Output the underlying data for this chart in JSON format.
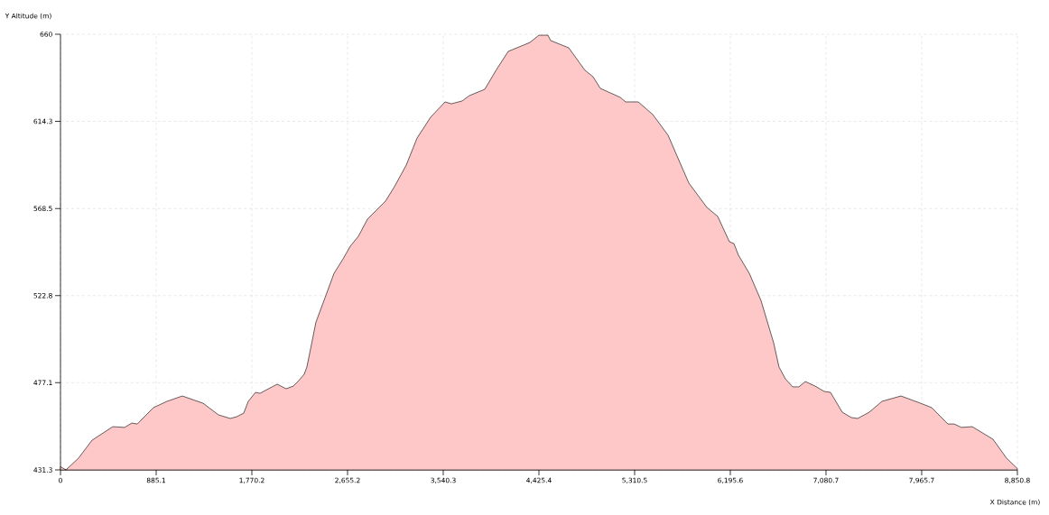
{
  "chart_data": {
    "type": "area",
    "xlabel": "X Distance (m)",
    "ylabel": "Y Altitude (m)",
    "color": "#ffc8c8",
    "grid": true,
    "xlim": [
      0,
      8850.8
    ],
    "ylim": [
      431.3,
      660
    ],
    "xticks": [
      0,
      885.1,
      {
        "value": 1770.2,
        "label": "1,770.2"
      },
      {
        "value": 2655.2,
        "label": "2,655.2"
      },
      {
        "value": 3540.3,
        "label": "3,540.3"
      },
      {
        "value": 4425.4,
        "label": "4,425.4"
      },
      {
        "value": 5310.5,
        "label": "5,310.5"
      },
      {
        "value": 6195.6,
        "label": "6,195.6"
      },
      {
        "value": 7080.7,
        "label": "7,080.7"
      },
      {
        "value": 7965.7,
        "label": "7,965.7"
      },
      {
        "value": 8850.8,
        "label": "8,850.8"
      }
    ],
    "yticks": [
      431.3,
      477.1,
      522.8,
      568.5,
      614.3,
      660
    ],
    "x": [
      0,
      50,
      167,
      292,
      484,
      593,
      660,
      710,
      860,
      985,
      1127,
      1319,
      1461,
      1570,
      1628,
      1695,
      1737,
      1804,
      1845,
      2004,
      2087,
      2154,
      2196,
      2254,
      2279,
      2363,
      2447,
      2530,
      2614,
      2680,
      2755,
      2839,
      3006,
      3089,
      3198,
      3298,
      3423,
      3557,
      3616,
      3716,
      3782,
      3924,
      4033,
      4141,
      4342,
      4425,
      4509,
      4534,
      4701,
      4851,
      4926,
      4993,
      5177,
      5227,
      5344,
      5478,
      5620,
      5703,
      5812,
      5979,
      6079,
      6187,
      6229,
      6271,
      6371,
      6479,
      6596,
      6646,
      6705,
      6772,
      6830,
      6889,
      6980,
      7064,
      7122,
      7231,
      7314,
      7373,
      7481,
      7598,
      7774,
      7932,
      8058,
      8208,
      8266,
      8333,
      8433,
      8625,
      8750,
      8850.8
    ],
    "values": [
      433,
      431.3,
      437.5,
      446.9,
      454.0,
      453.6,
      455.9,
      455.4,
      464.0,
      467.3,
      470.1,
      466.3,
      460.2,
      458.3,
      459.2,
      461.1,
      467.3,
      472.0,
      471.5,
      476.3,
      473.9,
      475.3,
      477.7,
      481.5,
      485.3,
      508.9,
      521.7,
      534.5,
      542.1,
      548.7,
      553.9,
      562.9,
      572.4,
      580.0,
      591.3,
      605.5,
      616.4,
      624.5,
      623.5,
      625.0,
      627.8,
      631.1,
      641.5,
      651.0,
      655.7,
      659.5,
      659.5,
      656.7,
      652.9,
      641.1,
      637.7,
      631.6,
      626.9,
      624.5,
      624.5,
      617.9,
      607.0,
      596.1,
      581.9,
      569.1,
      564.4,
      551.1,
      550.1,
      544.0,
      534.5,
      520.3,
      498.1,
      485.3,
      479.1,
      474.9,
      474.9,
      477.7,
      475.3,
      472.5,
      472.0,
      461.6,
      458.8,
      458.3,
      461.6,
      467.3,
      470.1,
      466.8,
      464.0,
      455.4,
      455.4,
      453.6,
      454.0,
      447.4,
      437.5,
      432
    ]
  }
}
